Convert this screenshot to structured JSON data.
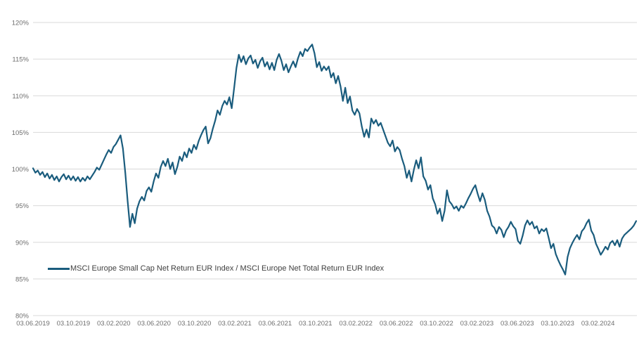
{
  "chart_data": {
    "type": "line",
    "title": "",
    "xlabel": "",
    "ylabel": "",
    "ylim": [
      80,
      120
    ],
    "grid": true,
    "legend_position": "inside-bottom-left",
    "y_tick_labels": [
      "120%",
      "115%",
      "110%",
      "105%",
      "100%",
      "95%",
      "90%",
      "85%",
      "80%"
    ],
    "x_tick_labels": [
      "03.06.2019",
      "03.10.2019",
      "03.02.2020",
      "03.06.2020",
      "03.10.2020",
      "03.02.2021",
      "03.06.2021",
      "03.10.2021",
      "03.02.2022",
      "03.06.2022",
      "03.10.2022",
      "03.02.2023",
      "03.06.2023",
      "03.10.2023",
      "03.02.2024"
    ],
    "series": [
      {
        "name": "MSCI Europe Small Cap Net Return EUR Index / MSCI Europe Net Total Return EUR Index",
        "color": "#1A5C7D",
        "start_date": "03.06.2019",
        "frequency": "weekly",
        "unit": "%",
        "values": [
          100.1,
          99.5,
          99.8,
          99.2,
          99.6,
          98.9,
          99.4,
          98.7,
          99.2,
          98.5,
          99.0,
          98.3,
          98.9,
          99.3,
          98.6,
          99.1,
          98.5,
          99.0,
          98.4,
          98.9,
          98.3,
          98.8,
          98.4,
          99.0,
          98.6,
          99.1,
          99.6,
          100.2,
          99.9,
          100.6,
          101.3,
          102.0,
          102.6,
          102.2,
          103.0,
          103.4,
          104.0,
          104.6,
          102.8,
          99.5,
          95.6,
          92.1,
          93.9,
          92.6,
          94.6,
          95.6,
          96.2,
          95.7,
          97.0,
          97.5,
          96.9,
          98.3,
          99.4,
          98.8,
          100.3,
          101.1,
          100.4,
          101.4,
          100.0,
          100.9,
          99.3,
          100.3,
          101.7,
          101.1,
          102.3,
          101.6,
          102.8,
          102.2,
          103.3,
          102.7,
          103.8,
          104.6,
          105.3,
          105.8,
          103.5,
          104.2,
          105.5,
          106.6,
          108.0,
          107.4,
          108.6,
          109.3,
          108.8,
          109.8,
          108.3,
          111.0,
          113.8,
          115.6,
          114.6,
          115.4,
          114.3,
          115.1,
          115.5,
          114.4,
          114.9,
          113.8,
          114.7,
          115.2,
          114.0,
          114.6,
          113.6,
          114.5,
          113.5,
          114.9,
          115.7,
          114.8,
          113.5,
          114.3,
          113.2,
          114.0,
          114.7,
          113.9,
          115.1,
          116.0,
          115.4,
          116.4,
          116.1,
          116.6,
          117.0,
          115.8,
          113.9,
          114.6,
          113.4,
          114.0,
          113.5,
          114.0,
          112.5,
          113.1,
          111.7,
          112.7,
          111.3,
          109.3,
          111.1,
          109.0,
          109.9,
          108.0,
          107.4,
          108.2,
          107.6,
          105.8,
          104.4,
          105.4,
          104.3,
          106.9,
          106.2,
          106.7,
          105.9,
          106.3,
          105.4,
          104.5,
          103.6,
          103.1,
          103.9,
          102.4,
          103.0,
          102.6,
          101.4,
          100.4,
          98.8,
          99.8,
          98.3,
          99.9,
          101.2,
          100.1,
          101.6,
          99.0,
          98.4,
          97.2,
          97.8,
          96.0,
          95.2,
          93.9,
          94.6,
          92.9,
          94.3,
          97.1,
          95.6,
          95.2,
          94.6,
          94.9,
          94.3,
          95.0,
          94.7,
          95.3,
          96.0,
          96.6,
          97.3,
          97.8,
          96.6,
          95.6,
          96.7,
          95.8,
          94.3,
          93.5,
          92.3,
          92.0,
          91.2,
          92.1,
          91.7,
          90.7,
          91.6,
          92.1,
          92.8,
          92.2,
          91.8,
          90.2,
          89.8,
          90.9,
          92.3,
          93.0,
          92.4,
          92.8,
          91.9,
          92.2,
          91.2,
          91.8,
          91.5,
          91.9,
          90.6,
          89.2,
          89.8,
          88.4,
          87.6,
          86.9,
          86.3,
          85.6,
          88.0,
          89.2,
          89.9,
          90.5,
          91.0,
          90.4,
          91.5,
          91.9,
          92.6,
          93.1,
          91.6,
          91.0,
          89.8,
          89.1,
          88.3,
          88.8,
          89.4,
          89.0,
          89.9,
          90.2,
          89.6,
          90.3,
          89.4,
          90.5,
          91.0,
          91.3,
          91.6,
          91.9,
          92.3,
          92.9
        ]
      }
    ],
    "colors": {
      "line": "#1A5C7D",
      "grid": "#D9D9D9",
      "axis_text": "#6E6E6E",
      "legend_text": "#404040",
      "background": "#FFFFFF"
    }
  }
}
